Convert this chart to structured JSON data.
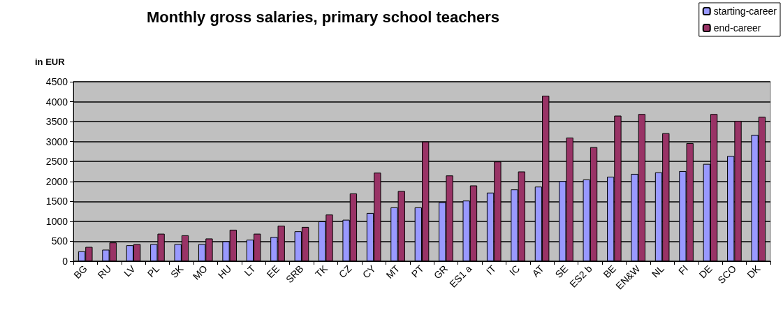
{
  "chart_data": {
    "type": "bar",
    "title": "Monthly gross salaries, primary school teachers",
    "ylabel": "in EUR",
    "categories": [
      "BG",
      "RU",
      "LV",
      "PL",
      "SK",
      "MO",
      "HU",
      "LT",
      "EE",
      "SRB",
      "TK",
      "CZ",
      "CY",
      "MT",
      "PT",
      "GR",
      "ES1 a",
      "IT",
      "IC",
      "AT",
      "SE",
      "ES2 b",
      "BE",
      "EN&W",
      "NL",
      "FI",
      "DE",
      "SCO",
      "DK"
    ],
    "series": [
      {
        "name": "starting-career",
        "color": "#9999ff",
        "values": [
          250,
          290,
          400,
          430,
          430,
          430,
          500,
          540,
          610,
          750,
          1000,
          1040,
          1210,
          1350,
          1350,
          1480,
          1520,
          1720,
          1800,
          1870,
          2010,
          2050,
          2120,
          2190,
          2230,
          2260,
          2440,
          2640,
          3170
        ]
      },
      {
        "name": "end-career",
        "color": "#993366",
        "values": [
          360,
          470,
          430,
          690,
          650,
          570,
          790,
          690,
          890,
          860,
          1170,
          1700,
          2220,
          1760,
          3000,
          2150,
          1900,
          2500,
          2250,
          4150,
          3100,
          2860,
          3650,
          3690,
          3210,
          2960,
          3690,
          3520,
          3620
        ]
      }
    ],
    "ylim": [
      0,
      4500
    ],
    "yticks": [
      0,
      500,
      1000,
      1500,
      2000,
      2500,
      3000,
      3500,
      4000,
      4500
    ],
    "grid": "y",
    "legend": "top right"
  }
}
